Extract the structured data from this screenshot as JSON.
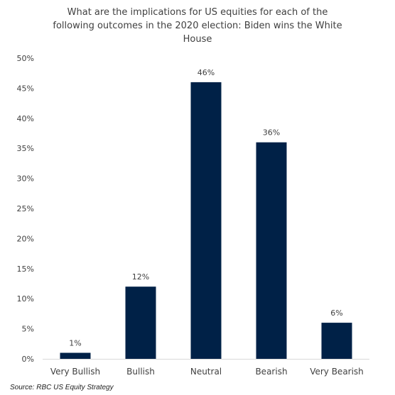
{
  "chart_data": {
    "type": "bar",
    "title_lines": [
      "What are the implications for US equities for each of the",
      "following outcomes in the 2020 election: Biden wins the White",
      "House"
    ],
    "categories": [
      "Very Bullish",
      "Bullish",
      "Neutral",
      "Bearish",
      "Very Bearish"
    ],
    "values": [
      1,
      12,
      46,
      36,
      6
    ],
    "value_label_suffix": "%",
    "ylim": [
      0,
      50
    ],
    "y_ticks": [
      0,
      5,
      10,
      15,
      20,
      25,
      30,
      35,
      40,
      45,
      50
    ],
    "y_tick_labels": [
      "0%",
      "5%",
      "10%",
      "15%",
      "20%",
      "25%",
      "30%",
      "35%",
      "40%",
      "45%",
      "50%"
    ],
    "xlabel": "",
    "ylabel": "",
    "grid": false,
    "bar_color": "#002147",
    "text_color": "#404040"
  },
  "source": "Source: RBC US Equity Strategy"
}
